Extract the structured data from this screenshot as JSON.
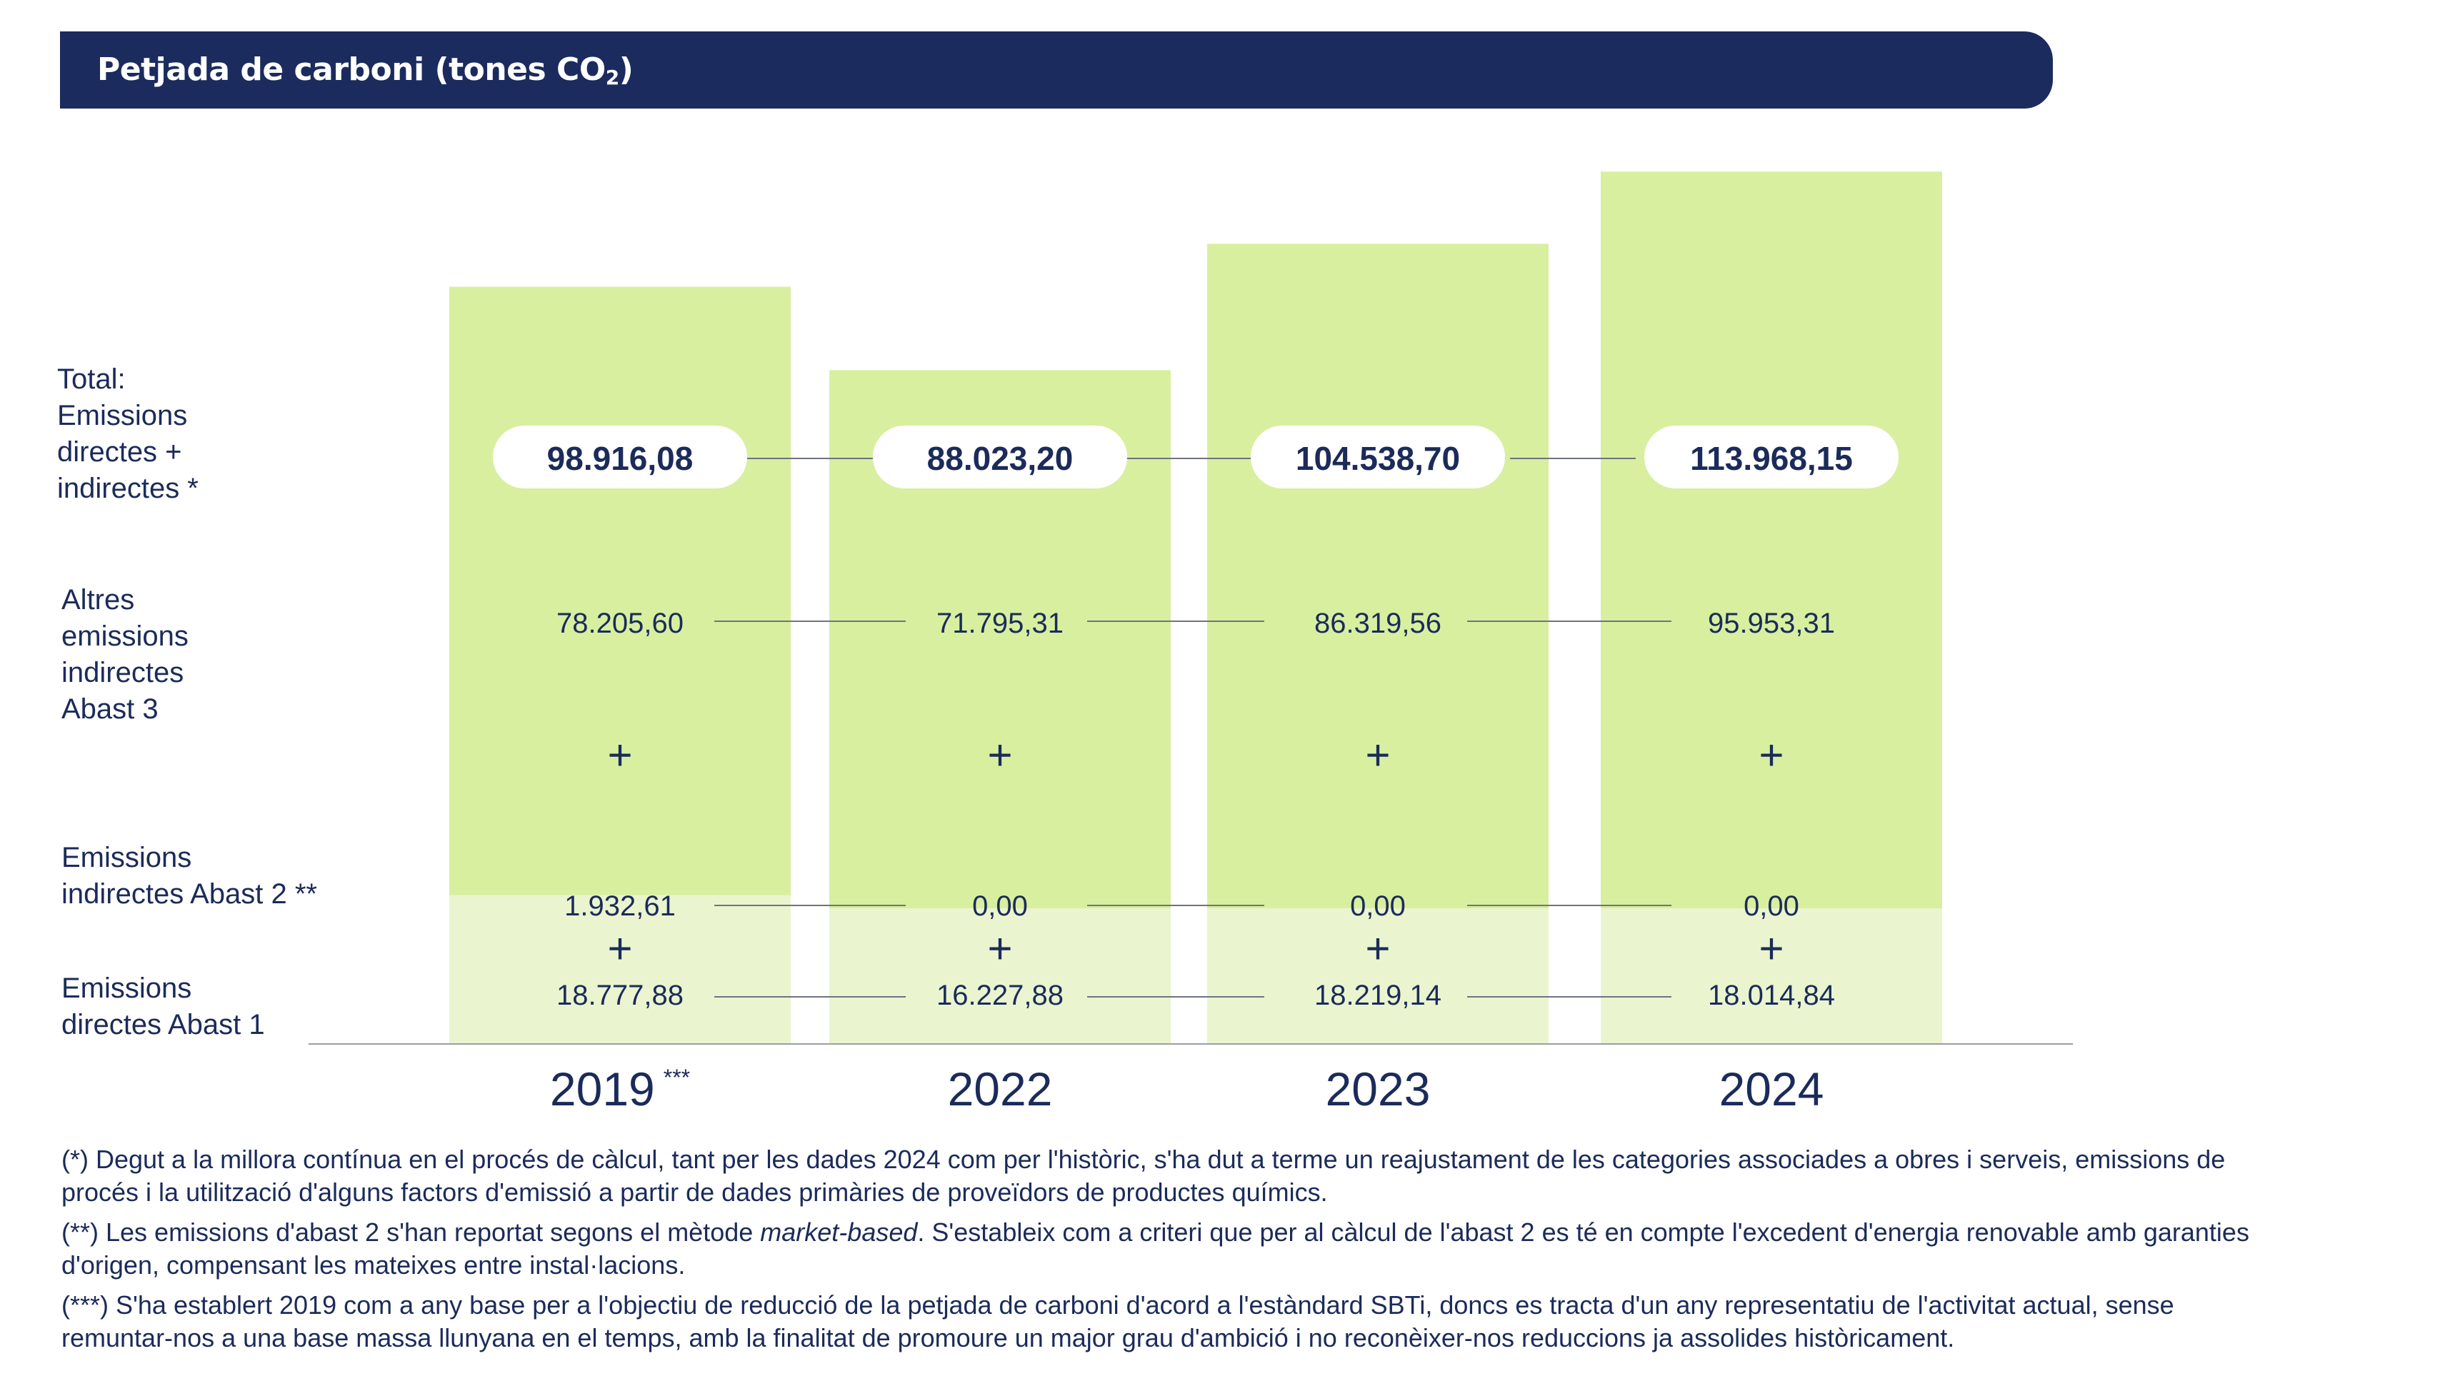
{
  "header": {
    "title_main": "Petjada de carboni (tones CO",
    "title_sub": "2",
    "title_end": ")"
  },
  "row_labels": {
    "total": [
      "Total:",
      "Emissions",
      "directes +",
      "indirectes *"
    ],
    "scope3": [
      "Altres",
      "emissions",
      "indirectes",
      "Abast 3"
    ],
    "scope2": [
      "Emissions",
      "indirectes  Abast 2 **"
    ],
    "scope1": [
      "Emissions",
      "directes Abast 1"
    ]
  },
  "chart_data": {
    "type": "bar",
    "stacked": true,
    "categories": [
      "2019 ***",
      "2022",
      "2023",
      "2024"
    ],
    "series": [
      {
        "name": "Emissions directes Abast 1",
        "values": [
          18777.88,
          16227.88,
          18219.14,
          18014.84
        ],
        "labels": [
          "18.777,88",
          "16.227,88",
          "18.219,14",
          "18.014,84"
        ]
      },
      {
        "name": "Emissions indirectes  Abast 2 **",
        "values": [
          1932.61,
          0.0,
          0.0,
          0.0
        ],
        "labels": [
          "1.932,61",
          "0,00",
          "0,00",
          "0,00"
        ]
      },
      {
        "name": "Altres emissions indirectes Abast 3",
        "values": [
          78205.6,
          71795.31,
          86319.56,
          95953.31
        ],
        "labels": [
          "78.205,60",
          "71.795,31",
          "86.319,56",
          "95.953,31"
        ]
      }
    ],
    "totals": [
      98916.08,
      88023.2,
      104538.7,
      113968.15
    ],
    "total_labels": [
      "98.916,08",
      "88.023,20",
      "104.538,70",
      "113.968,15"
    ],
    "plus_sign": "+",
    "colors": {
      "scope3": "#d8efa0",
      "scope12": "#eaf5cf",
      "pill": "#ffffff",
      "text": "#1b2b5a",
      "connector": "#6f7380",
      "header": "#1b2b5e"
    }
  },
  "notes": {
    "n1_a": "(*) Degut a la millora contínua en el procés de càlcul, tant per les dades 2024 com per l'històric, s'ha dut a terme un reajustament de les categories associades a obres i serveis, emissions de",
    "n1_b": "procés i la utilització d'alguns factors d'emissió a partir de dades primàries de proveïdors de productes químics.",
    "n2_a_pre": "(**) Les emissions d'abast 2 s'han reportat segons el mètode ",
    "n2_a_it": "market-based",
    "n2_a_post": ".  S'estableix com a criteri que per al càlcul de l'abast 2 es té en compte l'excedent d'energia renovable amb garanties",
    "n2_b": "d'origen, compensant les mateixes entre instal·lacions.",
    "n3_a": "(***) S'ha establert 2019 com a any base per a l'objectiu de reducció de la petjada de carboni d'acord a l'estàndard SBTi, doncs es tracta  d'un any representatiu de l'activitat actual, sense",
    "n3_b": "remuntar-nos a una base massa llunyana en el temps, amb la finalitat de promoure un major grau d'ambició i no reconèixer-nos reduccions ja assolides històricament."
  }
}
